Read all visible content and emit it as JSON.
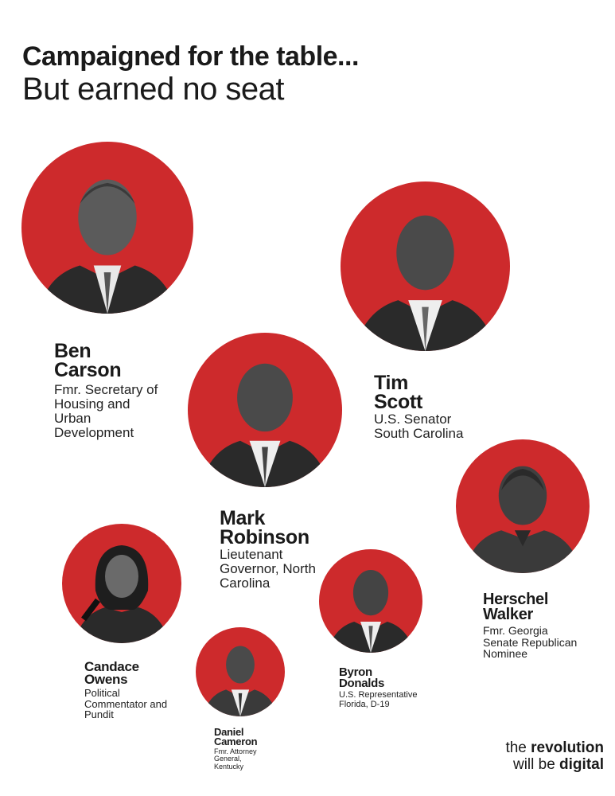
{
  "header": {
    "title_line1": "Campaigned for the table...",
    "title_line2": "But earned no seat"
  },
  "colors": {
    "accent": "#cd2a2c",
    "text": "#1a1a1a",
    "background": "#ffffff"
  },
  "people": [
    {
      "id": "ben-carson",
      "name_lines": [
        "Ben",
        "Carson"
      ],
      "role_lines": [
        "Fmr. Secretary of",
        "Housing and",
        "Urban",
        "Development"
      ]
    },
    {
      "id": "tim-scott",
      "name_lines": [
        "Tim",
        "Scott"
      ],
      "role_lines": [
        "U.S. Senator",
        "South Carolina"
      ]
    },
    {
      "id": "mark-robinson",
      "name_lines": [
        "Mark",
        "Robinson"
      ],
      "role_lines": [
        "Lieutenant",
        "Governor, North",
        "Carolina"
      ]
    },
    {
      "id": "herschel-walker",
      "name_lines": [
        "Herschel",
        "Walker"
      ],
      "role_lines": [
        "Fmr. Georgia",
        "Senate Republican",
        "Nominee"
      ]
    },
    {
      "id": "candace-owens",
      "name_lines": [
        "Candace",
        "Owens"
      ],
      "role_lines": [
        "Political",
        "Commentator and",
        "Pundit"
      ]
    },
    {
      "id": "byron-donalds",
      "name_lines": [
        "Byron",
        "Donalds"
      ],
      "role_lines": [
        "U.S. Representative",
        "Florida, D-19"
      ]
    },
    {
      "id": "daniel-cameron",
      "name_lines": [
        "Daniel",
        "Cameron"
      ],
      "role_lines": [
        "Fmr. Attorney",
        "General,",
        "Kentucky"
      ]
    }
  ],
  "brand": {
    "line1_prefix": "the ",
    "line1_bold": "revolution",
    "line2_prefix": "will be ",
    "line2_bold": "digital"
  }
}
